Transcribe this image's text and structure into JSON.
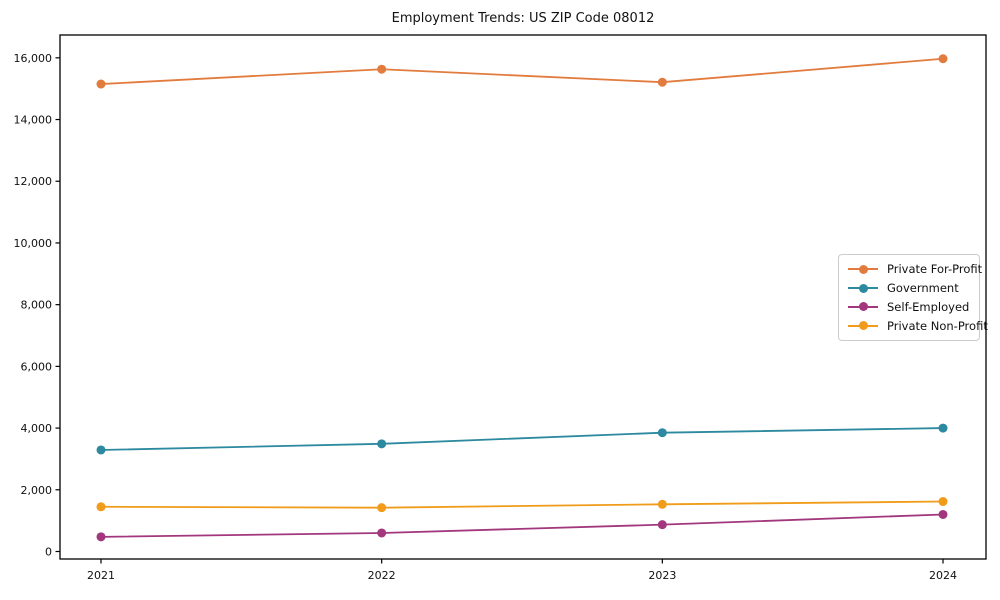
{
  "chart_data": {
    "type": "line",
    "title": "Employment Trends: US ZIP Code 08012",
    "xlabel": "",
    "ylabel": "",
    "x": [
      "2021",
      "2022",
      "2023",
      "2024"
    ],
    "series": [
      {
        "name": "Private For-Profit",
        "color": "#E27B3E",
        "values": [
          15150,
          15630,
          15210,
          15970
        ]
      },
      {
        "name": "Government",
        "color": "#2C89A0",
        "values": [
          3290,
          3490,
          3850,
          4000
        ]
      },
      {
        "name": "Self-Employed",
        "color": "#A2377E",
        "values": [
          475,
          600,
          870,
          1200
        ]
      },
      {
        "name": "Private Non-Profit",
        "color": "#F09C1A",
        "values": [
          1450,
          1420,
          1530,
          1620
        ]
      }
    ],
    "y_ticks": [
      0,
      2000,
      4000,
      6000,
      8000,
      10000,
      12000,
      14000,
      16000
    ],
    "y_tick_labels": [
      "0",
      "2,000",
      "4,000",
      "6,000",
      "8,000",
      "10,000",
      "12,000",
      "14,000",
      "16,000"
    ],
    "ylim": [
      -260,
      16860
    ],
    "grid": false,
    "marker": "circle",
    "legend_position": "center-right",
    "axis_color": "#000000",
    "text_color": "#111111"
  }
}
